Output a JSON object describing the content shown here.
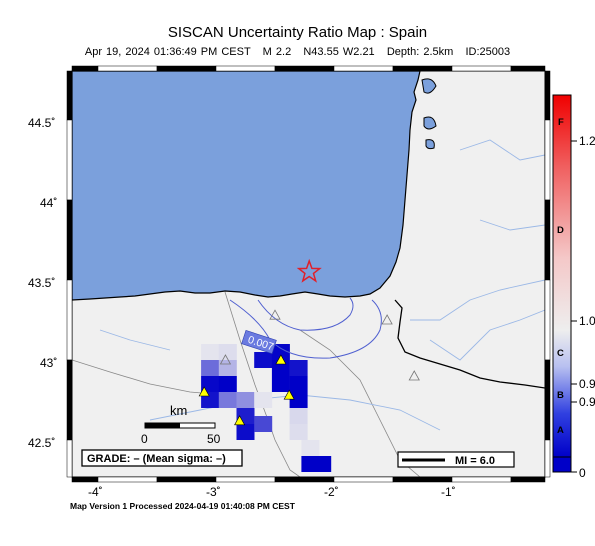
{
  "title": "SISCAN Uncertainty Ratio Map : Spain",
  "subtitle": {
    "datetime": "Apr 19, 2024 01:36:49 PM CEST",
    "magnitude": "M 2.2",
    "location": "N43.55 W2.21",
    "depth": "Depth: 2.5km",
    "id": "ID:25003"
  },
  "axes": {
    "lon_ticks": [
      "-4˚",
      "-3˚",
      "-2˚",
      "-1˚"
    ],
    "lat_ticks": [
      "44.5˚",
      "44˚",
      "43.5˚",
      "43˚",
      "42.5˚"
    ]
  },
  "scale_bar": {
    "unit": "km",
    "label_0": "0",
    "label_50": "50"
  },
  "grade_box": "GRADE: – (Mean sigma: –)",
  "mi_legend": "MI = 6.0",
  "contour_label": "0.007",
  "colorbar": {
    "labels": [
      "1.2",
      "1.0",
      "0.9",
      "0.9",
      "0"
    ],
    "grades": [
      "F",
      "D",
      "C",
      "B",
      "A"
    ]
  },
  "footer": "Map Version 1 Processed 2024-04-19 01:40:08 PM CEST",
  "colors": {
    "sea": "#7ba0dc",
    "land": "#f0f0f0",
    "epicenter": "#e0202a",
    "station": "#ffff00",
    "high_grid": "#0000cc"
  },
  "epicenter": {
    "lat": 43.55,
    "lon": -2.21
  },
  "grid_cells": [
    {
      "lon": -2.6,
      "lat": 43.0,
      "value": 0.95
    },
    {
      "lon": -2.45,
      "lat": 43.05,
      "value": 0.98
    },
    {
      "lon": -2.45,
      "lat": 42.95,
      "value": 1.0
    },
    {
      "lon": -2.45,
      "lat": 42.85,
      "value": 1.0
    },
    {
      "lon": -2.3,
      "lat": 42.95,
      "value": 0.92
    },
    {
      "lon": -2.3,
      "lat": 42.85,
      "value": 1.0
    },
    {
      "lon": -2.3,
      "lat": 42.75,
      "value": 1.0
    },
    {
      "lon": -3.05,
      "lat": 42.95,
      "value": 0.55
    },
    {
      "lon": -2.9,
      "lat": 42.95,
      "value": 0.25
    },
    {
      "lon": -3.05,
      "lat": 42.85,
      "value": 0.97
    },
    {
      "lon": -2.9,
      "lat": 42.85,
      "value": 1.0
    },
    {
      "lon": -3.05,
      "lat": 42.75,
      "value": 0.92
    },
    {
      "lon": -2.9,
      "lat": 42.75,
      "value": 0.5
    },
    {
      "lon": -2.75,
      "lat": 42.75,
      "value": 0.4
    },
    {
      "lon": -2.75,
      "lat": 42.65,
      "value": 0.88
    },
    {
      "lon": -2.75,
      "lat": 42.55,
      "value": 0.95
    },
    {
      "lon": -2.6,
      "lat": 42.6,
      "value": 0.7
    },
    {
      "lon": -2.3,
      "lat": 42.65,
      "value": 0.1
    },
    {
      "lon": -2.3,
      "lat": 42.55,
      "value": 0.08
    },
    {
      "lon": -2.2,
      "lat": 42.45,
      "value": 0.05
    },
    {
      "lon": -2.2,
      "lat": 42.35,
      "value": 1.0
    },
    {
      "lon": -2.1,
      "lat": 42.35,
      "value": 1.0
    },
    {
      "lon": -2.6,
      "lat": 42.75,
      "value": 0.05
    },
    {
      "lon": -3.05,
      "lat": 43.05,
      "value": 0.05
    },
    {
      "lon": -2.9,
      "lat": 43.05,
      "value": 0.08
    }
  ],
  "stations": [
    {
      "lon": -2.45,
      "lat": 43.0,
      "active": true
    },
    {
      "lon": -2.38,
      "lat": 42.78,
      "active": true
    },
    {
      "lon": -3.1,
      "lat": 42.8,
      "active": true
    },
    {
      "lon": -2.8,
      "lat": 42.62,
      "active": true
    },
    {
      "lon": -2.92,
      "lat": 43.0,
      "active": false
    },
    {
      "lon": -2.5,
      "lat": 43.28,
      "active": false
    },
    {
      "lon": -1.55,
      "lat": 43.25,
      "active": false
    },
    {
      "lon": -1.32,
      "lat": 42.9,
      "active": false
    }
  ]
}
